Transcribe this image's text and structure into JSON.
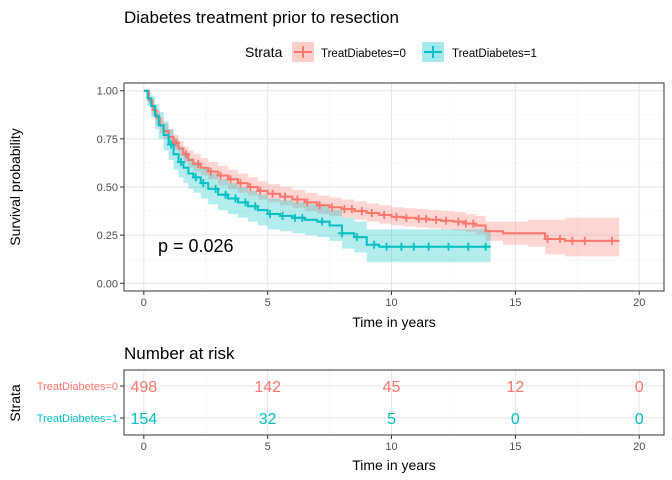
{
  "chart_data": [
    {
      "type": "line",
      "subtype": "kaplan-meier",
      "title": "Diabetes treatment prior to resection",
      "xlabel": "Time in years",
      "ylabel": "Survival probability",
      "xlim": [
        -0.8,
        21
      ],
      "ylim": [
        -0.04,
        1.04
      ],
      "xticks": [
        "0",
        "5",
        "10",
        "15",
        "20"
      ],
      "yticks": [
        "0.00",
        "0.25",
        "0.50",
        "0.75",
        "1.00"
      ],
      "grid": true,
      "legend": {
        "title": "Strata",
        "position": "top",
        "entries": [
          "TreatDiabetes=0",
          "TreatDiabetes=1"
        ]
      },
      "annotation": "p = 0.026",
      "series": [
        {
          "name": "TreatDiabetes=0",
          "color": "#F8766D",
          "x": [
            0,
            0.2,
            0.35,
            0.5,
            0.65,
            0.8,
            1,
            1.2,
            1.4,
            1.6,
            1.8,
            2,
            2.3,
            2.6,
            3,
            3.4,
            3.8,
            4.2,
            4.6,
            5,
            5.5,
            6,
            6.5,
            7,
            7.5,
            8,
            8.5,
            9,
            9.5,
            10,
            10.5,
            11,
            11.5,
            12,
            12.5,
            13,
            13.4,
            13.8,
            14.5,
            15.5,
            16.2,
            17,
            19.2
          ],
          "y": [
            1,
            0.95,
            0.9,
            0.86,
            0.82,
            0.79,
            0.76,
            0.73,
            0.7,
            0.67,
            0.64,
            0.62,
            0.6,
            0.58,
            0.56,
            0.54,
            0.52,
            0.5,
            0.48,
            0.465,
            0.45,
            0.435,
            0.42,
            0.405,
            0.395,
            0.385,
            0.375,
            0.365,
            0.355,
            0.345,
            0.34,
            0.335,
            0.33,
            0.325,
            0.32,
            0.31,
            0.3,
            0.27,
            0.26,
            0.26,
            0.23,
            0.22,
            0.22
          ],
          "ci_upper": [
            1,
            0.97,
            0.93,
            0.9,
            0.86,
            0.83,
            0.8,
            0.77,
            0.74,
            0.71,
            0.69,
            0.67,
            0.65,
            0.63,
            0.61,
            0.59,
            0.57,
            0.55,
            0.53,
            0.515,
            0.5,
            0.485,
            0.47,
            0.455,
            0.445,
            0.435,
            0.425,
            0.415,
            0.405,
            0.395,
            0.39,
            0.385,
            0.38,
            0.375,
            0.37,
            0.36,
            0.35,
            0.32,
            0.32,
            0.33,
            0.33,
            0.34,
            0.34
          ],
          "ci_lower": [
            1,
            0.93,
            0.87,
            0.82,
            0.78,
            0.75,
            0.72,
            0.69,
            0.66,
            0.63,
            0.6,
            0.58,
            0.56,
            0.54,
            0.51,
            0.49,
            0.47,
            0.455,
            0.435,
            0.42,
            0.405,
            0.39,
            0.375,
            0.36,
            0.35,
            0.34,
            0.33,
            0.32,
            0.31,
            0.3,
            0.295,
            0.29,
            0.285,
            0.28,
            0.275,
            0.265,
            0.255,
            0.22,
            0.2,
            0.19,
            0.15,
            0.14,
            0.14
          ],
          "censor_x": [
            1.3,
            1.7,
            2.2,
            2.7,
            3.1,
            3.5,
            3.9,
            4.3,
            4.7,
            5.2,
            5.7,
            6.2,
            6.6,
            7.1,
            7.6,
            8.1,
            8.4,
            8.8,
            9.2,
            9.7,
            10.2,
            10.6,
            11.1,
            11.4,
            11.8,
            12.2,
            12.7,
            13.0,
            13.3,
            16.3,
            16.8,
            17.3,
            17.8,
            18.9
          ]
        },
        {
          "name": "TreatDiabetes=1",
          "color": "#00BFC4",
          "x": [
            0,
            0.15,
            0.3,
            0.45,
            0.6,
            0.8,
            1,
            1.2,
            1.4,
            1.6,
            1.8,
            2,
            2.3,
            2.6,
            3,
            3.4,
            3.8,
            4.2,
            4.6,
            5,
            5.5,
            6,
            6.5,
            7,
            7.5,
            8,
            8.5,
            9,
            9.5,
            10,
            11,
            12,
            13,
            14
          ],
          "y": [
            1,
            0.96,
            0.92,
            0.87,
            0.82,
            0.77,
            0.72,
            0.67,
            0.63,
            0.6,
            0.57,
            0.55,
            0.52,
            0.49,
            0.46,
            0.44,
            0.42,
            0.4,
            0.38,
            0.36,
            0.35,
            0.34,
            0.33,
            0.32,
            0.3,
            0.26,
            0.24,
            0.2,
            0.19,
            0.19,
            0.19,
            0.19,
            0.19,
            0.19
          ],
          "ci_upper": [
            1,
            0.99,
            0.97,
            0.93,
            0.89,
            0.84,
            0.8,
            0.75,
            0.71,
            0.68,
            0.65,
            0.63,
            0.6,
            0.57,
            0.54,
            0.52,
            0.5,
            0.48,
            0.46,
            0.44,
            0.43,
            0.42,
            0.41,
            0.4,
            0.38,
            0.34,
            0.32,
            0.28,
            0.28,
            0.28,
            0.28,
            0.28,
            0.28,
            0.28
          ],
          "ci_lower": [
            1,
            0.92,
            0.86,
            0.8,
            0.75,
            0.69,
            0.64,
            0.59,
            0.55,
            0.52,
            0.49,
            0.47,
            0.44,
            0.41,
            0.38,
            0.36,
            0.34,
            0.32,
            0.3,
            0.28,
            0.27,
            0.26,
            0.25,
            0.24,
            0.22,
            0.18,
            0.16,
            0.11,
            0.11,
            0.11,
            0.11,
            0.11,
            0.11,
            0.11
          ],
          "censor_x": [
            1.1,
            1.5,
            2.1,
            2.4,
            2.9,
            3.3,
            3.7,
            4.1,
            4.5,
            5.1,
            5.6,
            6.1,
            6.4,
            7.2,
            8.0,
            8.6,
            9.3,
            9.8,
            10.4,
            10.9,
            11.5,
            12.3,
            13.1,
            13.8
          ]
        }
      ]
    },
    {
      "type": "table",
      "title": "Number at risk",
      "xlabel": "Time in years",
      "ylabel": "Strata",
      "xticks": [
        "0",
        "5",
        "10",
        "15",
        "20"
      ],
      "rows": [
        {
          "label": "TreatDiabetes=0",
          "color": "#F8766D",
          "values": [
            "498",
            "142",
            "45",
            "12",
            "0"
          ]
        },
        {
          "label": "TreatDiabetes=1",
          "color": "#00BFC4",
          "values": [
            "154",
            "32",
            "5",
            "0",
            "0"
          ]
        }
      ]
    }
  ]
}
